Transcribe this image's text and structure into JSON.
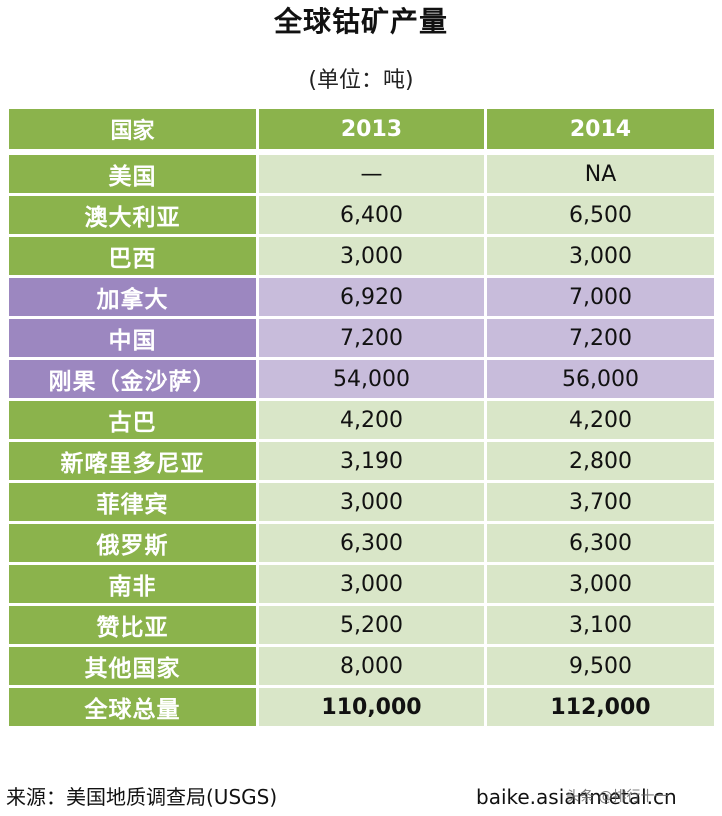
{
  "title": "全球钴矿产量",
  "subtitle": "(单位：吨)",
  "table": {
    "headers": [
      "国家",
      "2013",
      "2014"
    ],
    "rows": [
      {
        "country": "美国",
        "y2013": "—",
        "y2014": "NA"
      },
      {
        "country": "澳大利亚",
        "y2013": "6,400",
        "y2014": "6,500"
      },
      {
        "country": "巴西",
        "y2013": "3,000",
        "y2014": "3,000"
      },
      {
        "country": "加拿大",
        "y2013": "6,920",
        "y2014": "7,000"
      },
      {
        "country": "中国",
        "y2013": "7,200",
        "y2014": "7,200"
      },
      {
        "country": "刚果（金沙萨）",
        "y2013": "54,000",
        "y2014": "56,000"
      },
      {
        "country": "古巴",
        "y2013": "4,200",
        "y2014": "4,200"
      },
      {
        "country": "新喀里多尼亚",
        "y2013": "3,190",
        "y2014": "2,800"
      },
      {
        "country": "菲律宾",
        "y2013": "3,000",
        "y2014": "3,700"
      },
      {
        "country": "俄罗斯",
        "y2013": "6,300",
        "y2014": "6,300"
      },
      {
        "country": "南非",
        "y2013": "3,000",
        "y2014": "3,000"
      },
      {
        "country": "赞比亚",
        "y2013": "5,200",
        "y2014": "3,100"
      },
      {
        "country": "其他国家",
        "y2013": "8,000",
        "y2014": "9,500"
      },
      {
        "country": "全球总量",
        "y2013": "110,000",
        "y2014": "112,000"
      }
    ]
  },
  "footer": {
    "source": "来源：美国地质调查局(USGS)",
    "site": "baike.asianmetal.cn",
    "watermark": "头条 @排行十一"
  },
  "colors": {
    "header_green": "#8bb34c",
    "cell_green": "#d9e6c8",
    "highlight_purple": "#9c87c0",
    "highlight_purple_light": "#c8bcdb"
  }
}
